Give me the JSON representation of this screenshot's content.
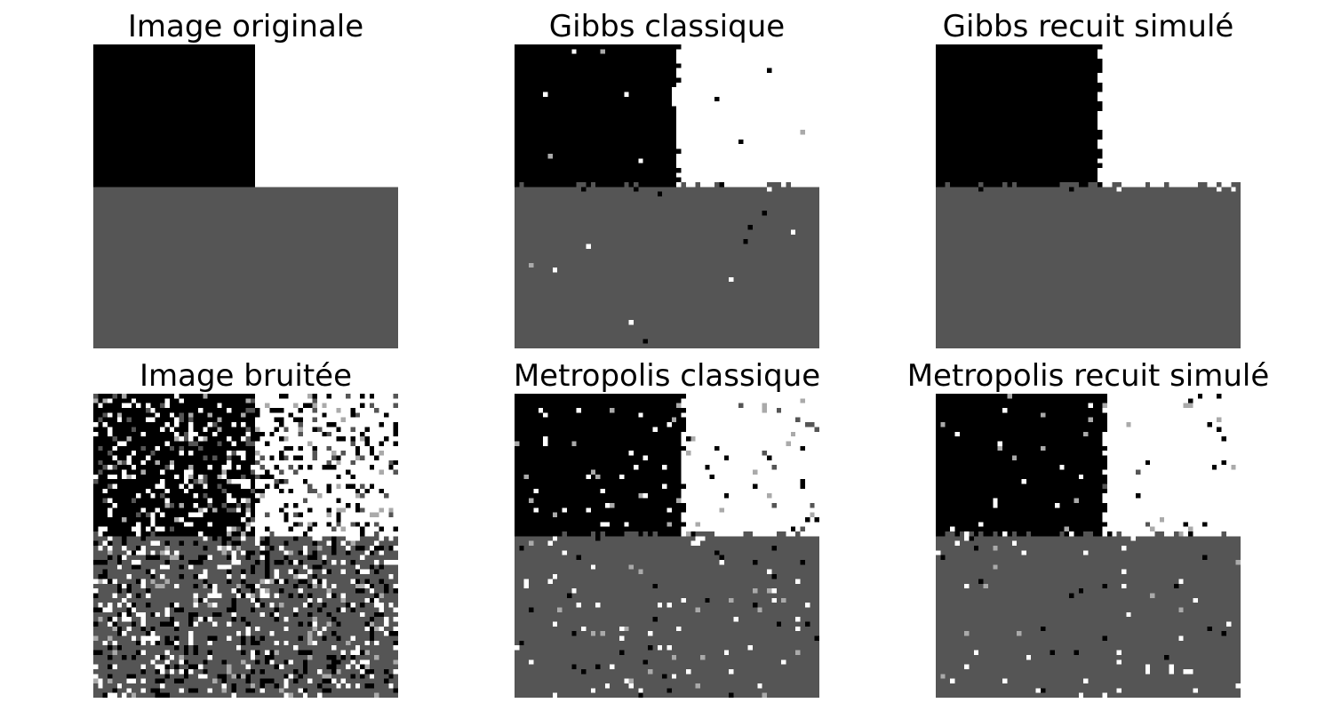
{
  "figure": {
    "grid": {
      "rows": 2,
      "columns": 3
    },
    "grayscale_levels": {
      "black": "#000000",
      "gray": "#555555",
      "white": "#ffffff",
      "light_gray": "#aaaaaa"
    },
    "panels": [
      {
        "title": "Image originale",
        "content": "clean"
      },
      {
        "title": "Gibbs classique",
        "content": "gibbs_classic"
      },
      {
        "title": "Gibbs recuit simulé",
        "content": "gibbs_annealing"
      },
      {
        "title": "Image bruitée",
        "content": "noisy"
      },
      {
        "title": "Metropolis classique",
        "content": "metropolis_classic"
      },
      {
        "title": "Metropolis recuit simulé",
        "content": "metropolis_annealing"
      }
    ]
  }
}
